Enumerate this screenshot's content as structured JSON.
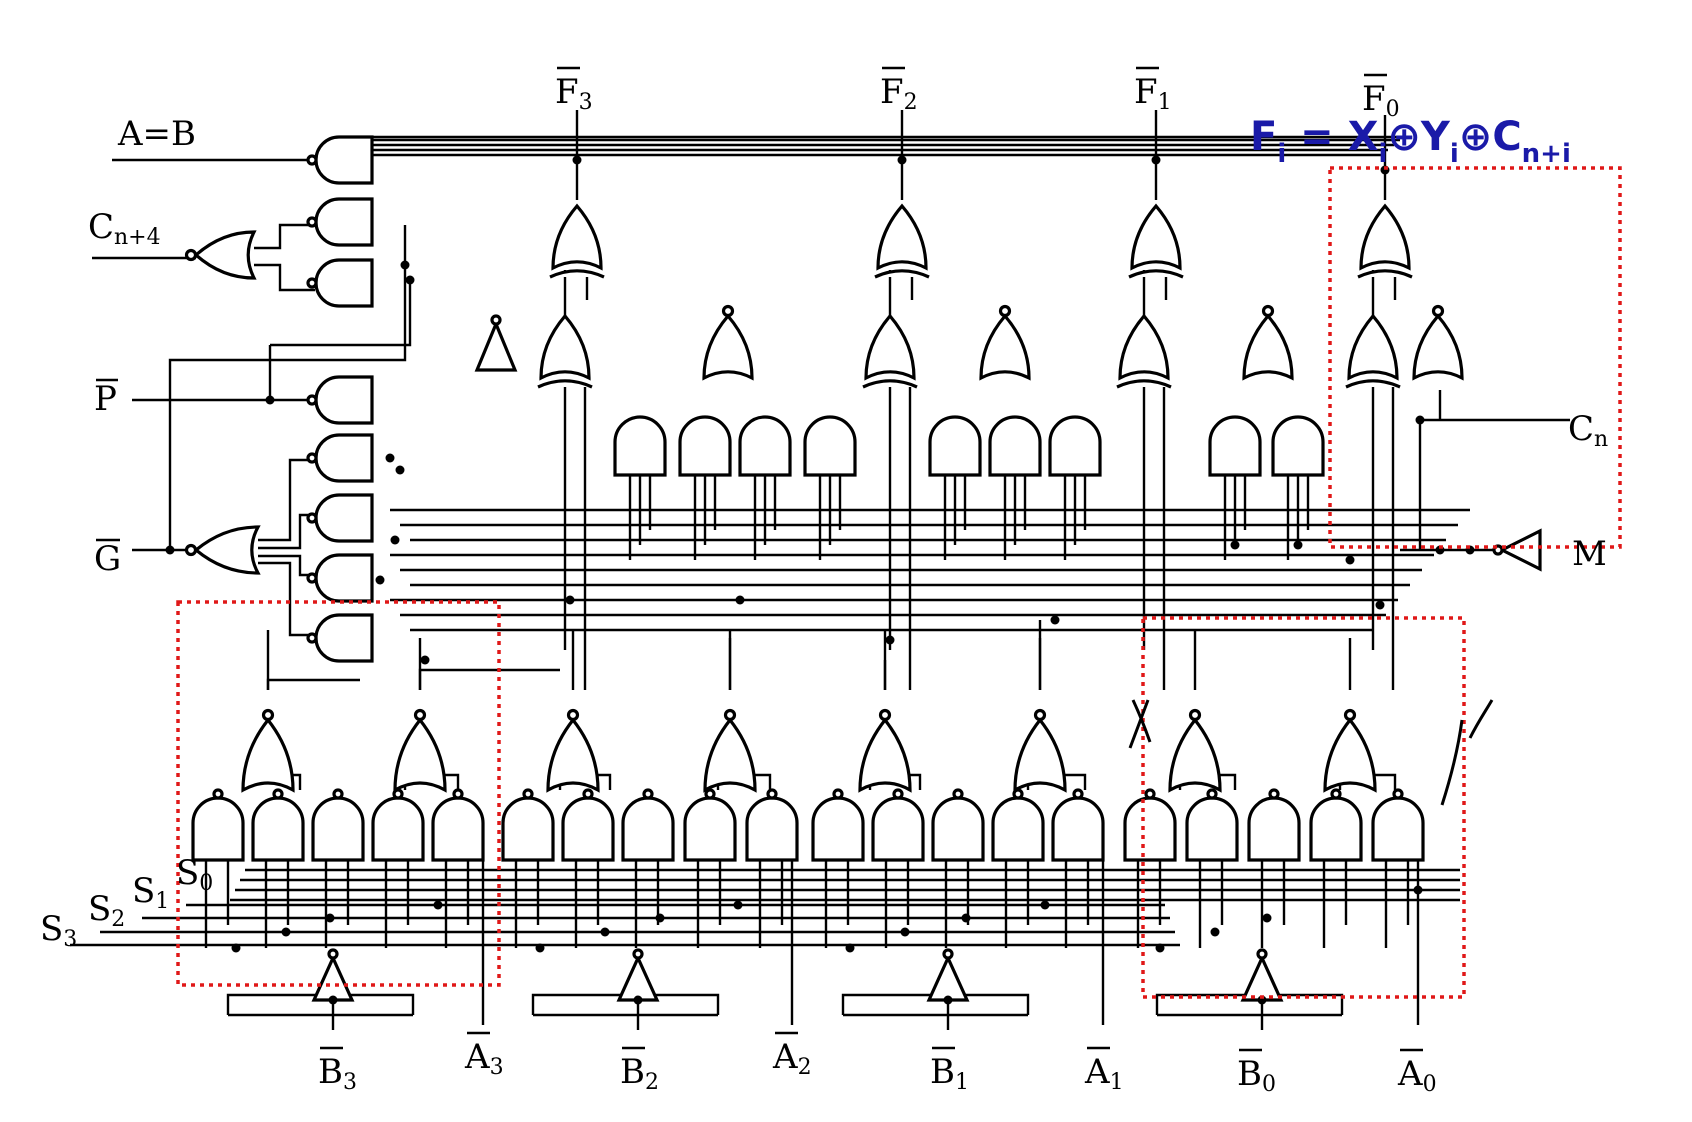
{
  "labels": {
    "aeqb": "A=B",
    "cn4": "C",
    "cn4_sub": "n+4",
    "p": "P",
    "g": "G",
    "cn": "C",
    "cn_sub": "n",
    "m": "M",
    "f3": "F",
    "f3_sub": "3",
    "f2": "F",
    "f2_sub": "2",
    "f1": "F",
    "f1_sub": "1",
    "f0": "F",
    "f0_sub": "0",
    "s3": "S",
    "s3_sub": "3",
    "s2": "S",
    "s2_sub": "2",
    "s1": "S",
    "s1_sub": "1",
    "s0": "S",
    "s0_sub": "0",
    "b3": "B",
    "b3_sub": "3",
    "a3": "A",
    "a3_sub": "3",
    "b2": "B",
    "b2_sub": "2",
    "a2": "A",
    "a2_sub": "2",
    "b1": "B",
    "b1_sub": "1",
    "a1": "A",
    "a1_sub": "1",
    "b0": "B",
    "b0_sub": "0",
    "a0": "A",
    "a0_sub": "0"
  },
  "formula": {
    "f": "F",
    "i1": "i",
    "eq": " = ",
    "x": "X",
    "i2": "i",
    "op1": "⊕",
    "y": "Y",
    "i3": "i",
    "op2": "⊕",
    "c": "C",
    "sub": "n+i"
  },
  "colors": {
    "highlight_box": "#e01818",
    "formula": "#1a1aa8"
  }
}
